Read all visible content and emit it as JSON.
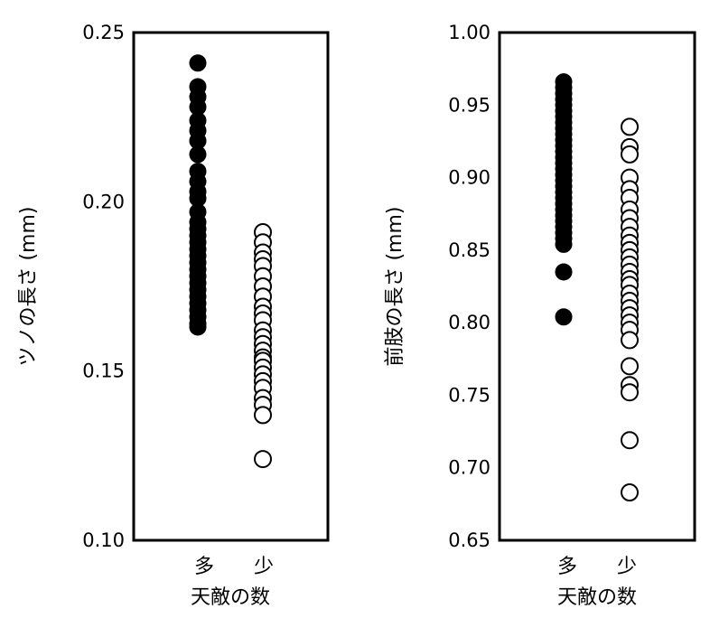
{
  "chart_data": [
    {
      "type": "scatter",
      "ylabel": "ツノの長さ (mm)",
      "xlabel": "天敵の数",
      "categories": [
        "多",
        "少"
      ],
      "ylim": [
        0.1,
        0.25
      ],
      "yticks": [
        "0.10",
        "0.15",
        "0.20",
        "0.25"
      ],
      "grid": false,
      "series": [
        {
          "category": "多",
          "marker": "filled",
          "values": [
            0.241,
            0.234,
            0.231,
            0.228,
            0.224,
            0.221,
            0.218,
            0.214,
            0.209,
            0.206,
            0.203,
            0.201,
            0.197,
            0.194,
            0.192,
            0.19,
            0.188,
            0.186,
            0.184,
            0.182,
            0.18,
            0.178,
            0.176,
            0.174,
            0.172,
            0.17,
            0.168,
            0.166,
            0.164,
            0.163
          ]
        },
        {
          "category": "少",
          "marker": "open",
          "values": [
            0.191,
            0.188,
            0.185,
            0.183,
            0.181,
            0.178,
            0.175,
            0.172,
            0.169,
            0.167,
            0.165,
            0.162,
            0.16,
            0.158,
            0.156,
            0.154,
            0.153,
            0.151,
            0.149,
            0.147,
            0.145,
            0.142,
            0.14,
            0.137,
            0.124
          ]
        }
      ]
    },
    {
      "type": "scatter",
      "ylabel": "前肢の長さ (mm)",
      "xlabel": "天敵の数",
      "categories": [
        "多",
        "少"
      ],
      "ylim": [
        0.65,
        1.0
      ],
      "yticks": [
        "0.65",
        "0.70",
        "0.75",
        "0.80",
        "0.85",
        "0.90",
        "0.95",
        "1.00"
      ],
      "grid": false,
      "series": [
        {
          "category": "多",
          "marker": "filled",
          "values": [
            0.966,
            0.962,
            0.958,
            0.954,
            0.95,
            0.946,
            0.942,
            0.938,
            0.934,
            0.93,
            0.926,
            0.922,
            0.918,
            0.914,
            0.91,
            0.906,
            0.902,
            0.898,
            0.894,
            0.89,
            0.886,
            0.882,
            0.878,
            0.874,
            0.87,
            0.866,
            0.862,
            0.858,
            0.854,
            0.835,
            0.804
          ]
        },
        {
          "category": "少",
          "marker": "open",
          "values": [
            0.935,
            0.921,
            0.916,
            0.9,
            0.892,
            0.886,
            0.878,
            0.872,
            0.866,
            0.86,
            0.855,
            0.85,
            0.845,
            0.84,
            0.835,
            0.83,
            0.826,
            0.82,
            0.815,
            0.81,
            0.805,
            0.8,
            0.795,
            0.788,
            0.77,
            0.757,
            0.752,
            0.719,
            0.683
          ]
        }
      ]
    }
  ]
}
